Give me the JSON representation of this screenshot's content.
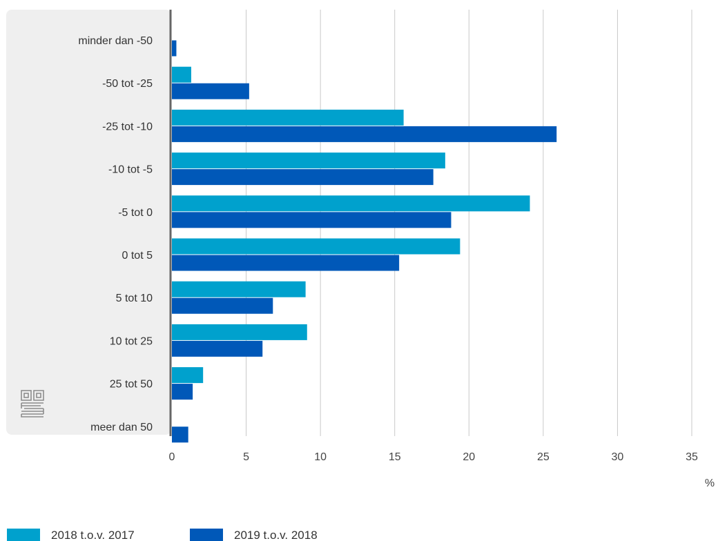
{
  "chart_data": {
    "type": "bar",
    "orientation": "horizontal",
    "categories": [
      "minder dan -50",
      "-50 tot -25",
      "-25 tot -10",
      "-10 tot -5",
      "-5 tot 0",
      "0 tot 5",
      "5 tot 10",
      "10 tot 25",
      "25 tot 50",
      "meer dan 50"
    ],
    "series": [
      {
        "name": "2018 t.o.v. 2017",
        "color": "#00a1cd",
        "values": [
          0,
          1.3,
          15.6,
          18.4,
          24.1,
          19.4,
          9.0,
          9.1,
          2.1,
          0
        ]
      },
      {
        "name": "2019 t.o.v. 2018",
        "color": "#0058b8",
        "values": [
          0.3,
          5.2,
          25.9,
          17.6,
          18.8,
          15.3,
          6.8,
          6.1,
          1.4,
          1.1
        ]
      }
    ],
    "xlim": [
      0,
      35
    ],
    "xticks": [
      "0",
      "5",
      "10",
      "15",
      "20",
      "25",
      "30",
      "35"
    ],
    "xlabel": "%",
    "grid": true,
    "legend": "bottom-left"
  },
  "colors": {
    "panel": "#efefef",
    "grid": "#c8c8c8",
    "axis": "#666666"
  },
  "logo_icon": "cbs-logo-icon"
}
